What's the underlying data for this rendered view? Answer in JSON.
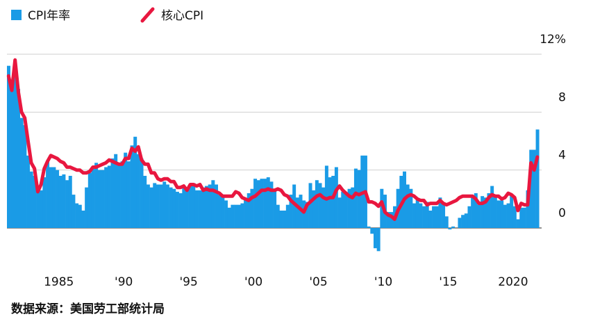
{
  "chart_data": {
    "type": "bar-line",
    "source": "数据来源：美国劳工部统计局",
    "x": [
      1981,
      1981.25,
      1981.5,
      1981.75,
      1982,
      1982.25,
      1982.5,
      1982.75,
      1983,
      1983.25,
      1983.5,
      1983.75,
      1984,
      1984.25,
      1984.5,
      1984.75,
      1985,
      1985.25,
      1985.5,
      1985.75,
      1986,
      1986.25,
      1986.5,
      1986.75,
      1987,
      1987.25,
      1987.5,
      1987.75,
      1988,
      1988.25,
      1988.5,
      1988.75,
      1989,
      1989.25,
      1989.5,
      1989.75,
      1990,
      1990.25,
      1990.5,
      1990.75,
      1991,
      1991.25,
      1991.5,
      1991.75,
      1992,
      1992.25,
      1992.5,
      1992.75,
      1993,
      1993.25,
      1993.5,
      1993.75,
      1994,
      1994.25,
      1994.5,
      1994.75,
      1995,
      1995.25,
      1995.5,
      1995.75,
      1996,
      1996.25,
      1996.5,
      1996.75,
      1997,
      1997.25,
      1997.5,
      1997.75,
      1998,
      1998.25,
      1998.5,
      1998.75,
      1999,
      1999.25,
      1999.5,
      1999.75,
      2000,
      2000.25,
      2000.5,
      2000.75,
      2001,
      2001.25,
      2001.5,
      2001.75,
      2002,
      2002.25,
      2002.5,
      2002.75,
      2003,
      2003.25,
      2003.5,
      2003.75,
      2004,
      2004.25,
      2004.5,
      2004.75,
      2005,
      2005.25,
      2005.5,
      2005.75,
      2006,
      2006.25,
      2006.5,
      2006.75,
      2007,
      2007.25,
      2007.5,
      2007.75,
      2008,
      2008.25,
      2008.5,
      2008.75,
      2009,
      2009.25,
      2009.5,
      2009.75,
      2010,
      2010.25,
      2010.5,
      2010.75,
      2011,
      2011.25,
      2011.5,
      2011.75,
      2012,
      2012.25,
      2012.5,
      2012.75,
      2013,
      2013.25,
      2013.5,
      2013.75,
      2014,
      2014.25,
      2014.5,
      2014.75,
      2015,
      2015.25,
      2015.5,
      2015.75,
      2016,
      2016.25,
      2016.5,
      2016.75,
      2017,
      2017.25,
      2017.5,
      2017.75,
      2018,
      2018.25,
      2018.5,
      2018.75,
      2019,
      2019.25,
      2019.5,
      2019.75,
      2020,
      2020.25,
      2020.5,
      2020.75,
      2021,
      2021.25,
      2021.5,
      2021.75
    ],
    "series": [
      {
        "name": "CPI年率",
        "color": "#1a9be6",
        "kind": "bar",
        "values": [
          11.2,
          9.7,
          10.9,
          9.6,
          7.6,
          7.1,
          5.0,
          3.9,
          3.6,
          2.6,
          2.6,
          3.5,
          4.6,
          4.2,
          4.2,
          4.0,
          3.6,
          3.7,
          3.3,
          3.6,
          2.3,
          1.7,
          1.6,
          1.2,
          2.8,
          3.8,
          4.2,
          4.5,
          4.0,
          4.0,
          4.2,
          4.3,
          4.8,
          5.1,
          4.5,
          4.6,
          5.2,
          4.6,
          5.7,
          6.3,
          5.1,
          4.8,
          3.6,
          3.0,
          2.8,
          3.1,
          3.0,
          3.0,
          3.2,
          3.0,
          2.8,
          2.7,
          2.5,
          2.4,
          2.9,
          2.7,
          2.9,
          3.1,
          2.6,
          2.6,
          2.8,
          2.9,
          3.0,
          3.3,
          3.0,
          2.3,
          2.2,
          1.9,
          1.4,
          1.6,
          1.6,
          1.6,
          1.7,
          2.0,
          2.4,
          2.7,
          3.4,
          3.3,
          3.4,
          3.4,
          3.5,
          3.2,
          2.6,
          1.6,
          1.2,
          1.2,
          1.6,
          2.3,
          3.0,
          2.1,
          2.3,
          1.9,
          1.8,
          3.1,
          2.6,
          3.3,
          3.1,
          2.8,
          4.3,
          3.5,
          3.6,
          4.2,
          2.1,
          2.5,
          2.4,
          2.7,
          2.8,
          4.1,
          4.0,
          5.0,
          5.0,
          0.1,
          -0.4,
          -1.4,
          -1.6,
          2.7,
          2.3,
          1.1,
          1.1,
          1.5,
          2.7,
          3.6,
          3.9,
          3.0,
          2.7,
          1.7,
          2.0,
          1.7,
          1.5,
          1.8,
          1.2,
          1.5,
          1.5,
          2.1,
          1.7,
          0.8,
          -0.1,
          0.1,
          0.0,
          0.7,
          0.9,
          1.0,
          1.5,
          2.1,
          2.4,
          1.6,
          2.2,
          2.1,
          2.4,
          2.9,
          2.3,
          1.9,
          1.9,
          1.6,
          1.7,
          2.3,
          1.5,
          0.6,
          1.4,
          1.4,
          2.6,
          5.4,
          5.4,
          6.8
        ]
      },
      {
        "name": "核心CPI",
        "color": "#e8173f",
        "kind": "line",
        "values": [
          10.5,
          9.5,
          11.6,
          9.4,
          8.0,
          7.6,
          6.0,
          4.5,
          4.1,
          2.5,
          3.0,
          4.1,
          4.6,
          5.0,
          4.9,
          4.8,
          4.6,
          4.5,
          4.2,
          4.2,
          4.1,
          4.0,
          4.0,
          3.8,
          3.8,
          3.9,
          4.2,
          4.2,
          4.3,
          4.4,
          4.5,
          4.7,
          4.6,
          4.5,
          4.4,
          4.4,
          4.8,
          4.8,
          5.5,
          5.3,
          5.6,
          4.7,
          4.4,
          4.4,
          3.8,
          3.8,
          3.4,
          3.3,
          3.4,
          3.4,
          3.2,
          3.2,
          2.8,
          2.8,
          2.9,
          2.6,
          3.0,
          3.0,
          2.9,
          3.0,
          2.6,
          2.7,
          2.6,
          2.6,
          2.5,
          2.4,
          2.2,
          2.2,
          2.2,
          2.2,
          2.5,
          2.4,
          2.1,
          2.0,
          1.9,
          2.1,
          2.2,
          2.4,
          2.6,
          2.6,
          2.7,
          2.6,
          2.6,
          2.7,
          2.6,
          2.3,
          2.2,
          1.9,
          1.7,
          1.5,
          1.3,
          1.1,
          1.6,
          1.8,
          2.0,
          2.2,
          2.3,
          2.1,
          2.0,
          2.1,
          2.1,
          2.6,
          2.9,
          2.6,
          2.4,
          2.2,
          2.1,
          2.4,
          2.3,
          2.4,
          2.5,
          1.8,
          1.8,
          1.7,
          1.5,
          1.8,
          1.1,
          0.9,
          0.8,
          0.6,
          1.2,
          1.6,
          2.0,
          2.2,
          2.3,
          2.2,
          2.0,
          1.9,
          1.9,
          1.6,
          1.7,
          1.7,
          1.7,
          1.9,
          1.7,
          1.6,
          1.7,
          1.8,
          1.9,
          2.1,
          2.2,
          2.2,
          2.2,
          2.2,
          2.0,
          1.7,
          1.7,
          1.8,
          2.1,
          2.3,
          2.2,
          2.2,
          2.0,
          2.1,
          2.4,
          2.3,
          2.1,
          1.2,
          1.7,
          1.6,
          1.6,
          4.5,
          4.0,
          4.9
        ]
      }
    ],
    "xlim": [
      1981,
      2022.2
    ],
    "xticks": [
      1985,
      {
        "value": 1990,
        "label": "'90"
      },
      {
        "value": 1995,
        "label": "'95"
      },
      {
        "value": 2000,
        "label": "'00"
      },
      {
        "value": 2005,
        "label": "'05"
      },
      {
        "value": 2010,
        "label": "'10"
      },
      {
        "value": 2015,
        "label": "'15"
      },
      2020
    ],
    "ylim": [
      -1.8,
      12
    ],
    "yticks": [
      0,
      4,
      8,
      {
        "value": 12,
        "label": "12%"
      }
    ],
    "grid": true
  }
}
